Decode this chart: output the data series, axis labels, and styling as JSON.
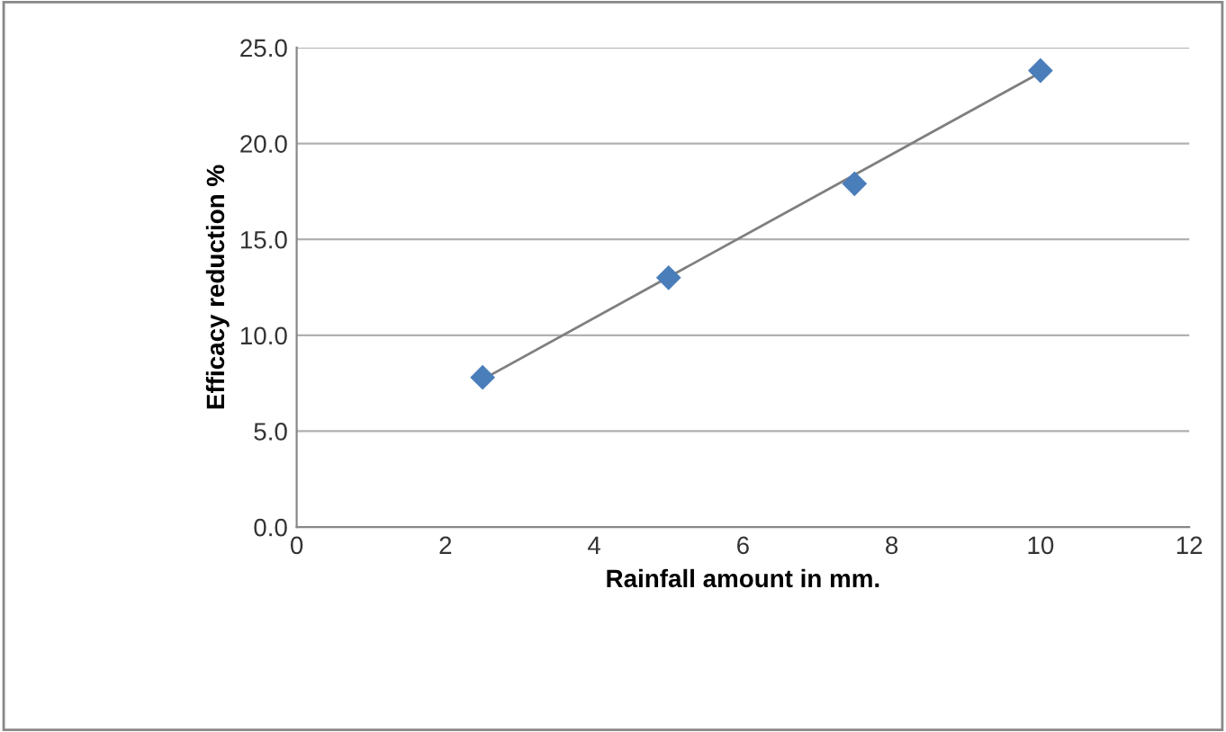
{
  "chart_data": {
    "type": "scatter",
    "xlabel": "Rainfall amount in mm.",
    "ylabel": "Efficacy reduction %",
    "series": [
      {
        "color": "#4a7ebb",
        "marker": "diamond",
        "x": [
          2.5,
          5,
          7.5,
          10
        ],
        "values": [
          7.8,
          13.0,
          17.9,
          23.8
        ]
      },
      {
        "type": "line",
        "color": "#7f7f7f",
        "marker": "none",
        "x": [
          2.5,
          10
        ],
        "values": [
          7.7,
          23.7
        ]
      }
    ],
    "xlim": [
      0,
      12
    ],
    "xticks": [
      0,
      2,
      4,
      6,
      8,
      10,
      12
    ],
    "ylim": [
      0,
      25
    ],
    "yticks": [
      {
        "value": 0,
        "label": "0.0"
      },
      {
        "value": 5,
        "label": "5.0"
      },
      {
        "value": 10,
        "label": "10.0"
      },
      {
        "value": 15,
        "label": "15.0"
      },
      {
        "value": 20,
        "label": "20.0"
      },
      {
        "value": 25,
        "label": "25.0"
      }
    ],
    "grid": "y",
    "legend": false
  }
}
